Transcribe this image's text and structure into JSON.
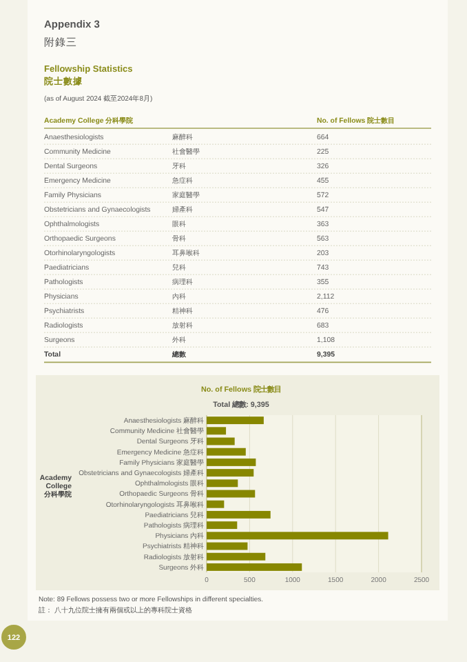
{
  "chart_data": [
    {
      "type": "heatmap",
      "annotations": [
        "Appendix 3",
        "附錄三",
        "Fellowship Statistics",
        "院士數據",
        "(as of August 2024 截至2024年8月)",
        "Academy College 分科學院"
      ],
      "categories": [
        "No. of Fellows 院士數目"
      ],
      "y_categories": [
        "Anaesthesiologists",
        "Community Medicine",
        "Dental Surgeons",
        "Emergency Medicine",
        "Family Physicians",
        "Obstetricians and Gynaecologists",
        "Ophthalmologists",
        "Orthopaedic Surgeons",
        "Otorhinolaryngologists",
        "Paediatricians",
        "Pathologists",
        "Physicians",
        "Psychiatrists",
        "Radiologists",
        "Surgeons",
        "Total"
      ],
      "y2_categories": [
        "麻醉科",
        "社會醫學",
        "牙科",
        "急症科",
        "家庭醫學",
        "婦產科",
        "眼科",
        "骨科",
        "耳鼻喉科",
        "兒科",
        "病理科",
        "內科",
        "精神科",
        "放射科",
        "外科",
        "總數"
      ],
      "cells": [
        [
          664
        ],
        [
          225
        ],
        [
          326
        ],
        [
          455
        ],
        [
          572
        ],
        [
          547
        ],
        [
          363
        ],
        [
          563
        ],
        [
          203
        ],
        [
          743
        ],
        [
          355
        ],
        [
          2112
        ],
        [
          476
        ],
        [
          683
        ],
        [
          1108
        ],
        [
          9395
        ]
      ],
      "cell_labels": [
        [
          "664"
        ],
        [
          "225"
        ],
        [
          "326"
        ],
        [
          "455"
        ],
        [
          "572"
        ],
        [
          "547"
        ],
        [
          "363"
        ],
        [
          "563"
        ],
        [
          "203"
        ],
        [
          "743"
        ],
        [
          "355"
        ],
        [
          "2,112"
        ],
        [
          "476"
        ],
        [
          "683"
        ],
        [
          "1,108"
        ],
        [
          "9,395"
        ]
      ]
    },
    {
      "type": "bar",
      "orientation": "horizontal",
      "title": "No. of Fellows 院士數目",
      "subtitle": "Total 總數: 9,395",
      "ylabel": "Academy College 分科學院",
      "categories": [
        "Anaesthesiologists 麻醉科",
        "Community Medicine 社會醫學",
        "Dental Surgeons 牙科",
        "Emergency Medicine 急症科",
        "Family Physicians 家庭醫學",
        "Obstetricians and Gynaecologists 婦產科",
        "Ophthalmologists 眼科",
        "Orthopaedic Surgeons 骨科",
        "Otorhinolaryngologists 耳鼻喉科",
        "Paediatricians 兒科",
        "Pathologists 病理科",
        "Physicians 內科",
        "Psychiatrists 精神科",
        "Radiologists 放射科",
        "Surgeons 外科"
      ],
      "values": [
        664,
        225,
        326,
        455,
        572,
        547,
        363,
        563,
        203,
        743,
        355,
        2112,
        476,
        683,
        1108
      ],
      "color": "#878700",
      "xlim": [
        0,
        2500
      ],
      "xticks": [
        0,
        500,
        1000,
        1500,
        2000,
        2500
      ],
      "grid": "x",
      "annotations": [
        "Note:  89 Fellows possess two or more Fellowships in different specialties.",
        "註：  八十九位院士擁有兩個或以上的專科院士資格",
        "122"
      ]
    }
  ]
}
